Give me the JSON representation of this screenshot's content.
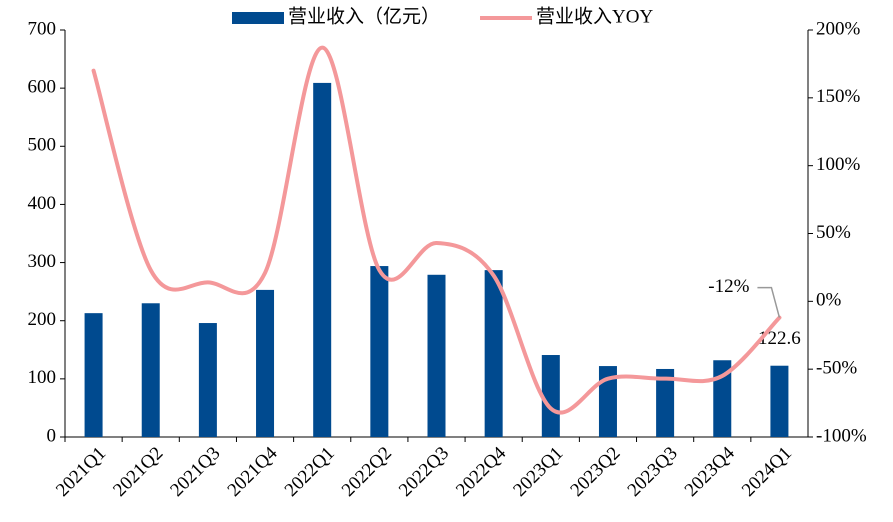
{
  "chart_data": {
    "type": "bar-line",
    "categories": [
      "2021Q1",
      "2021Q2",
      "2021Q3",
      "2021Q4",
      "2022Q1",
      "2022Q2",
      "2022Q3",
      "2022Q4",
      "2023Q1",
      "2023Q2",
      "2023Q3",
      "2023Q4",
      "2024Q1"
    ],
    "series": [
      {
        "name": "营业收入（亿元）",
        "type": "bar",
        "color": "#004a8f",
        "values": [
          213,
          230,
          196,
          253,
          609,
          294,
          279,
          287,
          141,
          122,
          117,
          132,
          122.6
        ],
        "value_labels": [
          null,
          null,
          null,
          null,
          null,
          null,
          null,
          null,
          null,
          null,
          null,
          null,
          "122.6"
        ]
      },
      {
        "name": "营业收入YOY",
        "type": "line",
        "axis": "y2",
        "color": "#f4989a",
        "values": [
          170,
          23,
          14,
          21,
          187,
          23,
          43,
          19,
          -79,
          -57,
          -57,
          -55,
          -12
        ],
        "value_labels": [
          null,
          null,
          null,
          null,
          null,
          null,
          null,
          null,
          null,
          null,
          null,
          null,
          "-12%"
        ]
      }
    ],
    "ylim": [
      0,
      700
    ],
    "yticks": [
      0,
      100,
      200,
      300,
      400,
      500,
      600,
      700
    ],
    "y2lim": [
      -100,
      200
    ],
    "y2ticks": [
      {
        "value": -100,
        "label": "-100%"
      },
      {
        "value": -50,
        "label": "-50%"
      },
      {
        "value": 0,
        "label": "0%"
      },
      {
        "value": 50,
        "label": "50%"
      },
      {
        "value": 100,
        "label": "100%"
      },
      {
        "value": 150,
        "label": "150%"
      },
      {
        "value": 200,
        "label": "200%"
      }
    ],
    "legend": "top",
    "grid": false
  }
}
